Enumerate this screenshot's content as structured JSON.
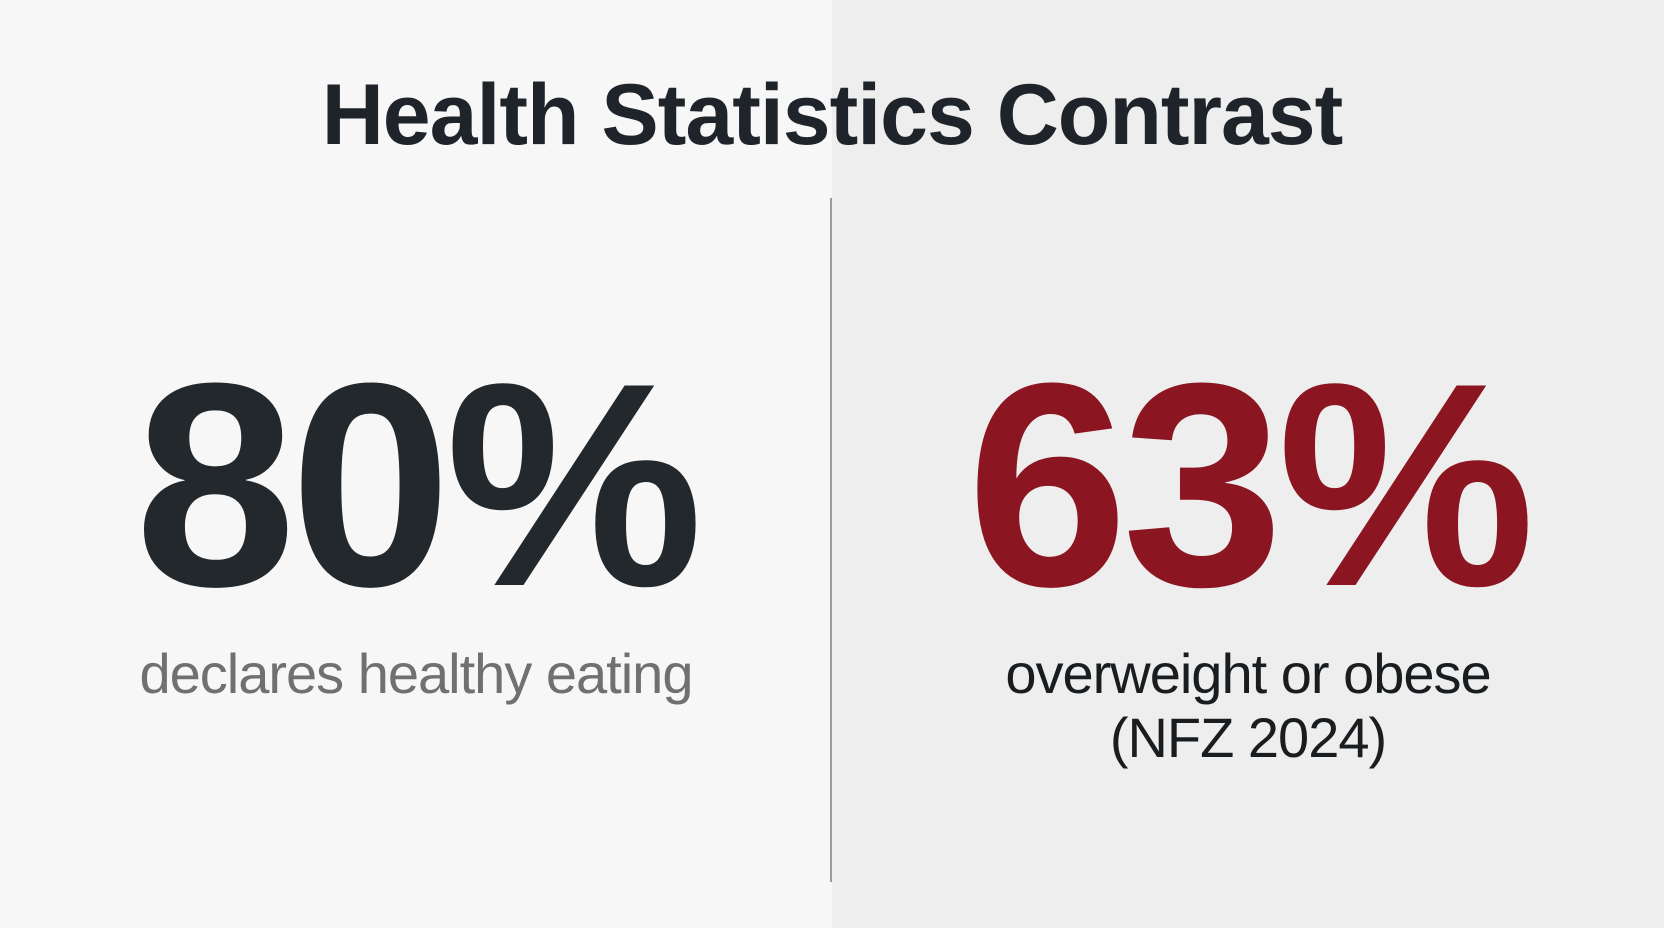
{
  "title": "Health Statistics Contrast",
  "left": {
    "value": "80%",
    "label": "declares healthy eating"
  },
  "right": {
    "value": "63%",
    "label_line1": "overweight or obese",
    "label_line2": "(NFZ 2024)"
  },
  "colors": {
    "left_background": "#f7f7f7",
    "right_background": "#eeeeee",
    "dark_text": "#22282c",
    "accent_red": "#8b1520",
    "muted_text": "#707070"
  }
}
